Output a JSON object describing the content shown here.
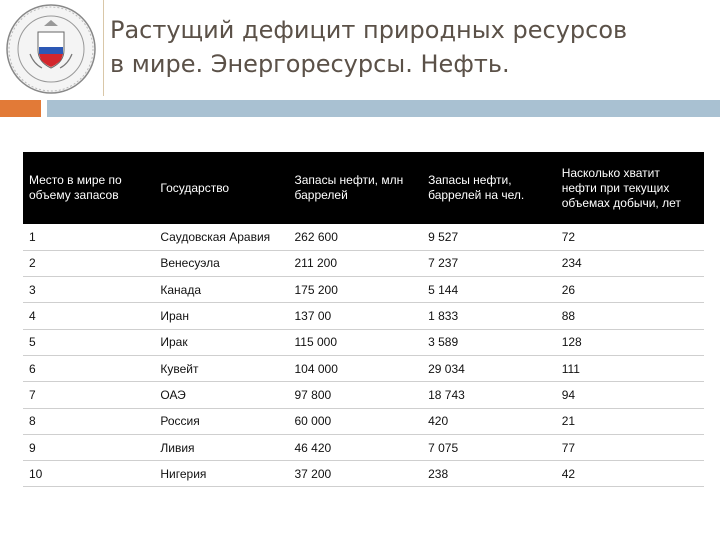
{
  "header": {
    "title_line1": "Растущий дефицит природных ресурсов",
    "title_line2": "в мире. Энергоресурсы. Нефть."
  },
  "table": {
    "columns": [
      "Место в мире по объему запасов",
      "Государство",
      "Запасы нефти, млн баррелей",
      "Запасы нефти, баррелей на чел.",
      "Насколько хватит нефти при текущих объемах добычи, лет"
    ],
    "rows": [
      [
        "1",
        "Саудовская Аравия",
        "262 600",
        "9 527",
        "72"
      ],
      [
        "2",
        "Венесуэла",
        "211 200",
        "7 237",
        "234"
      ],
      [
        "3",
        "Канада",
        "175 200",
        "5 144",
        "26"
      ],
      [
        "4",
        "Иран",
        "137 00",
        "1 833",
        "88"
      ],
      [
        "5",
        "Ирак",
        "115 000",
        "3 589",
        "128"
      ],
      [
        "6",
        "Кувейт",
        "104 000",
        "29 034",
        "111"
      ],
      [
        "7",
        "ОАЭ",
        "97 800",
        "18 743",
        "94"
      ],
      [
        "8",
        "Россия",
        "60 000",
        "420",
        "21"
      ],
      [
        "9",
        "Ливия",
        "46 420",
        "7 075",
        "77"
      ],
      [
        "10",
        "Нигерия",
        "37 200",
        "238",
        "42"
      ]
    ]
  },
  "colors": {
    "accent_orange": "#e27a37",
    "accent_blue": "#a9c1d2",
    "header_bg": "#000000"
  }
}
